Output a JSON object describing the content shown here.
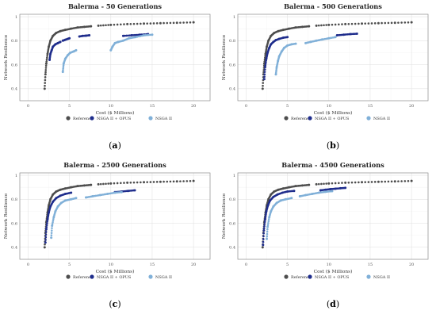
{
  "figure": {
    "legend_labels": [
      "Reference",
      "NSGA II + OPUS",
      "NSGA II"
    ],
    "colors": {
      "reference": "#4d4d4d",
      "nsga2_opus": "#1f2d8c",
      "nsga2": "#80b0d8"
    }
  },
  "chart_data": [
    {
      "type": "scatter",
      "panel": "a",
      "caption": "a",
      "title": "Balerma - 50 Generations",
      "xlabel": "Cost ($ Millions)",
      "ylabel": "Network Resilience",
      "xlim": [
        -1,
        22
      ],
      "ylim": [
        0.3,
        1.02
      ],
      "xticks": [
        0,
        5,
        10,
        15,
        20
      ],
      "yticks": [
        0.4,
        0.6,
        0.8,
        1.0
      ],
      "grid": true,
      "legend_position": "bottom",
      "series": [
        {
          "name": "Reference",
          "color": "#4d4d4d",
          "marker": "circle",
          "segments": [
            {
              "x": [
                2.0,
                2.1,
                2.2,
                2.35,
                2.5,
                2.7,
                3.0,
                3.4,
                3.9,
                4.5,
                5.2,
                6.0,
                6.8,
                7.6
              ],
              "y": [
                0.4,
                0.52,
                0.61,
                0.69,
                0.75,
                0.8,
                0.84,
                0.865,
                0.88,
                0.89,
                0.9,
                0.91,
                0.915,
                0.92
              ]
            },
            {
              "x": [
                8.5,
                10.0,
                12.0,
                14.0,
                16.0,
                18.0,
                20.0
              ],
              "y": [
                0.925,
                0.932,
                0.938,
                0.942,
                0.946,
                0.949,
                0.953
              ]
            }
          ]
        },
        {
          "name": "NSGA II + OPUS",
          "color": "#1f2d8c",
          "marker": "circle",
          "segments": [
            {
              "x": [
                2.6,
                2.7,
                2.85,
                3.0,
                3.3,
                3.6,
                3.9
              ],
              "y": [
                0.64,
                0.69,
                0.72,
                0.75,
                0.77,
                0.78,
                0.79
              ]
            },
            {
              "x": [
                4.2,
                4.5,
                4.8,
                5.0
              ],
              "y": [
                0.8,
                0.808,
                0.815,
                0.82
              ]
            },
            {
              "x": [
                6.2,
                6.6,
                7.0,
                7.4
              ],
              "y": [
                0.835,
                0.84,
                0.842,
                0.845
              ]
            },
            {
              "x": [
                11.5,
                12.5,
                13.5,
                14.5
              ],
              "y": [
                0.84,
                0.845,
                0.85,
                0.855
              ]
            }
          ]
        },
        {
          "name": "NSGA II",
          "color": "#80b0d8",
          "marker": "circle",
          "segments": [
            {
              "x": [
                4.2,
                4.3,
                4.5,
                4.8,
                5.1,
                5.5,
                5.8
              ],
              "y": [
                0.54,
                0.61,
                0.65,
                0.68,
                0.7,
                0.71,
                0.72
              ]
            },
            {
              "x": [
                10.0,
                10.2,
                10.5,
                10.9,
                11.5,
                12.2,
                13.0,
                14.0,
                15.0
              ],
              "y": [
                0.72,
                0.75,
                0.78,
                0.79,
                0.8,
                0.82,
                0.83,
                0.845,
                0.85
              ]
            }
          ]
        }
      ]
    },
    {
      "type": "scatter",
      "panel": "b",
      "caption": "b",
      "title": "Balerma - 500 Generations",
      "xlabel": "Cost ($ Millions)",
      "ylabel": "Network Resilience",
      "xlim": [
        -1,
        22
      ],
      "ylim": [
        0.3,
        1.02
      ],
      "xticks": [
        0,
        5,
        10,
        15,
        20
      ],
      "yticks": [
        0.4,
        0.6,
        0.8,
        1.0
      ],
      "grid": true,
      "legend_position": "bottom",
      "series": [
        {
          "name": "Reference",
          "color": "#4d4d4d",
          "marker": "circle",
          "segments": [
            {
              "x": [
                2.0,
                2.1,
                2.2,
                2.35,
                2.5,
                2.7,
                3.0,
                3.4,
                3.9,
                4.5,
                5.2,
                6.0,
                6.8,
                7.6
              ],
              "y": [
                0.4,
                0.52,
                0.61,
                0.69,
                0.75,
                0.8,
                0.84,
                0.865,
                0.88,
                0.89,
                0.9,
                0.91,
                0.915,
                0.92
              ]
            },
            {
              "x": [
                8.5,
                10.0,
                12.0,
                14.0,
                16.0,
                18.0,
                20.0
              ],
              "y": [
                0.925,
                0.932,
                0.938,
                0.942,
                0.946,
                0.949,
                0.953
              ]
            }
          ]
        },
        {
          "name": "NSGA II + OPUS",
          "color": "#1f2d8c",
          "marker": "circle",
          "segments": [
            {
              "x": [
                2.2,
                2.3,
                2.45,
                2.6,
                2.8,
                3.0,
                3.3,
                3.6,
                4.0,
                4.5,
                5.0
              ],
              "y": [
                0.48,
                0.58,
                0.65,
                0.7,
                0.74,
                0.77,
                0.79,
                0.805,
                0.815,
                0.825,
                0.83
              ]
            },
            {
              "x": [
                11.0,
                11.8,
                12.6,
                13.4
              ],
              "y": [
                0.845,
                0.85,
                0.855,
                0.858
              ]
            }
          ]
        },
        {
          "name": "NSGA II",
          "color": "#80b0d8",
          "marker": "circle",
          "segments": [
            {
              "x": [
                3.6,
                3.7,
                3.85,
                4.0,
                4.3,
                4.6,
                5.0,
                5.5,
                6.0
              ],
              "y": [
                0.52,
                0.58,
                0.63,
                0.67,
                0.71,
                0.74,
                0.76,
                0.77,
                0.775
              ]
            },
            {
              "x": [
                7.2,
                7.8,
                8.5,
                9.2,
                10.0,
                10.8
              ],
              "y": [
                0.78,
                0.79,
                0.8,
                0.81,
                0.82,
                0.83
              ]
            }
          ]
        }
      ]
    },
    {
      "type": "scatter",
      "panel": "c",
      "caption": "c",
      "title": "Balerma - 2500 Generations",
      "xlabel": "Cost ($ Millions)",
      "ylabel": "Network Resilience",
      "xlim": [
        -1,
        22
      ],
      "ylim": [
        0.3,
        1.02
      ],
      "xticks": [
        0,
        5,
        10,
        15,
        20
      ],
      "yticks": [
        0.4,
        0.6,
        0.8,
        1.0
      ],
      "grid": true,
      "legend_position": "bottom",
      "series": [
        {
          "name": "Reference",
          "color": "#4d4d4d",
          "marker": "circle",
          "segments": [
            {
              "x": [
                2.0,
                2.1,
                2.2,
                2.35,
                2.5,
                2.7,
                3.0,
                3.4,
                3.9,
                4.5,
                5.2,
                6.0,
                6.8,
                7.6
              ],
              "y": [
                0.4,
                0.52,
                0.61,
                0.69,
                0.75,
                0.8,
                0.84,
                0.865,
                0.88,
                0.89,
                0.9,
                0.91,
                0.915,
                0.92
              ]
            },
            {
              "x": [
                8.5,
                10.0,
                12.0,
                14.0,
                16.0,
                18.0,
                20.0
              ],
              "y": [
                0.925,
                0.932,
                0.938,
                0.942,
                0.946,
                0.949,
                0.953
              ]
            }
          ]
        },
        {
          "name": "NSGA II + OPUS",
          "color": "#1f2d8c",
          "marker": "circle",
          "segments": [
            {
              "x": [
                2.1,
                2.2,
                2.35,
                2.5,
                2.7,
                3.0,
                3.4,
                3.9,
                4.5,
                5.2
              ],
              "y": [
                0.44,
                0.55,
                0.63,
                0.69,
                0.74,
                0.78,
                0.81,
                0.83,
                0.845,
                0.855
              ]
            },
            {
              "x": [
                10.5,
                11.3,
                12.1,
                12.9
              ],
              "y": [
                0.86,
                0.865,
                0.87,
                0.875
              ]
            }
          ]
        },
        {
          "name": "NSGA II",
          "color": "#80b0d8",
          "marker": "circle",
          "segments": [
            {
              "x": [
                2.8,
                2.9,
                3.1,
                3.3,
                3.6,
                4.0,
                4.5,
                5.2,
                5.8
              ],
              "y": [
                0.48,
                0.58,
                0.65,
                0.7,
                0.74,
                0.77,
                0.79,
                0.8,
                0.81
              ]
            },
            {
              "x": [
                7.0,
                7.8,
                8.7,
                9.6,
                10.5,
                11.3
              ],
              "y": [
                0.815,
                0.825,
                0.835,
                0.845,
                0.855,
                0.86
              ]
            }
          ]
        }
      ]
    },
    {
      "type": "scatter",
      "panel": "d",
      "caption": "d",
      "title": "Balerma - 4500 Generations",
      "xlabel": "Cost ($ Millions)",
      "ylabel": "Network Resilience",
      "xlim": [
        -1,
        22
      ],
      "ylim": [
        0.3,
        1.02
      ],
      "xticks": [
        0,
        5,
        10,
        15,
        20
      ],
      "yticks": [
        0.4,
        0.6,
        0.8,
        1.0
      ],
      "grid": true,
      "legend_position": "bottom",
      "series": [
        {
          "name": "Reference",
          "color": "#4d4d4d",
          "marker": "circle",
          "segments": [
            {
              "x": [
                2.0,
                2.1,
                2.2,
                2.35,
                2.5,
                2.7,
                3.0,
                3.4,
                3.9,
                4.5,
                5.2,
                6.0,
                6.8,
                7.6
              ],
              "y": [
                0.4,
                0.52,
                0.61,
                0.69,
                0.75,
                0.8,
                0.84,
                0.865,
                0.88,
                0.89,
                0.9,
                0.91,
                0.915,
                0.92
              ]
            },
            {
              "x": [
                8.5,
                10.0,
                12.0,
                14.0,
                16.0,
                18.0,
                20.0
              ],
              "y": [
                0.925,
                0.932,
                0.938,
                0.942,
                0.946,
                0.949,
                0.953
              ]
            }
          ]
        },
        {
          "name": "NSGA II + OPUS",
          "color": "#1f2d8c",
          "marker": "circle",
          "segments": [
            {
              "x": [
                2.05,
                2.15,
                2.3,
                2.45,
                2.65,
                2.9,
                3.3,
                3.8,
                4.4,
                5.0,
                5.8
              ],
              "y": [
                0.42,
                0.54,
                0.63,
                0.7,
                0.75,
                0.79,
                0.82,
                0.84,
                0.855,
                0.865,
                0.87
              ]
            },
            {
              "x": [
                9.0,
                9.6,
                10.2,
                10.8,
                11.4,
                12.0
              ],
              "y": [
                0.875,
                0.88,
                0.885,
                0.888,
                0.892,
                0.895
              ]
            }
          ]
        },
        {
          "name": "NSGA II",
          "color": "#80b0d8",
          "marker": "circle",
          "segments": [
            {
              "x": [
                2.5,
                2.6,
                2.8,
                3.0,
                3.3,
                3.7,
                4.2,
                4.8,
                5.5
              ],
              "y": [
                0.47,
                0.57,
                0.65,
                0.7,
                0.74,
                0.77,
                0.79,
                0.8,
                0.81
              ]
            },
            {
              "x": [
                6.5,
                7.2,
                8.0,
                8.8,
                9.6,
                10.4
              ],
              "y": [
                0.825,
                0.835,
                0.845,
                0.855,
                0.862,
                0.868
              ]
            }
          ]
        }
      ]
    }
  ]
}
